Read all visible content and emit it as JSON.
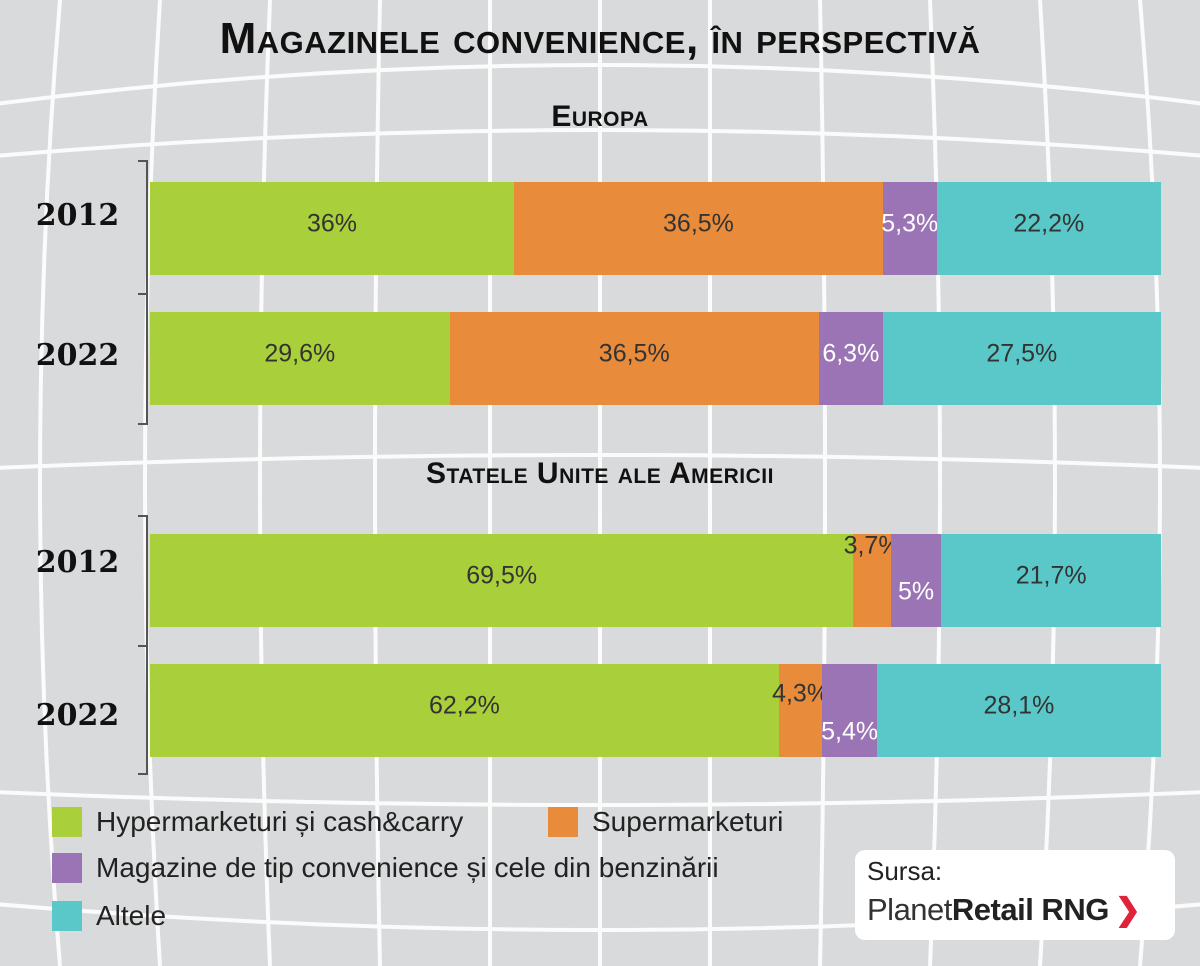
{
  "chart_data": [
    {
      "type": "bar",
      "orientation": "horizontal",
      "stacked": true,
      "title": "Europa",
      "categories": [
        "2012",
        "2022"
      ],
      "series": [
        {
          "name": "Hypermarketuri și cash&carry",
          "values": [
            36,
            29.6
          ],
          "labels": [
            "36%",
            "29,6%"
          ]
        },
        {
          "name": "Supermarketuri",
          "values": [
            36.5,
            36.5
          ],
          "labels": [
            "36,5%",
            "36,5%"
          ]
        },
        {
          "name": "Magazine de tip convenience și cele din benzinării",
          "values": [
            5.3,
            6.3
          ],
          "labels": [
            "5,3%",
            "6,3%"
          ]
        },
        {
          "name": "Altele",
          "values": [
            22.2,
            27.5
          ],
          "labels": [
            "22,2%",
            "27,5%"
          ]
        }
      ],
      "xlim": [
        0,
        100
      ],
      "grid": false
    },
    {
      "type": "bar",
      "orientation": "horizontal",
      "stacked": true,
      "title": "Statele Unite ale Americii",
      "categories": [
        "2012",
        "2022"
      ],
      "series": [
        {
          "name": "Hypermarketuri și cash&carry",
          "values": [
            69.5,
            62.2
          ],
          "labels": [
            "69,5%",
            "62,2%"
          ]
        },
        {
          "name": "Supermarketuri",
          "values": [
            3.7,
            4.3
          ],
          "labels": [
            "3,7%",
            "4,3%"
          ]
        },
        {
          "name": "Magazine de tip convenience și cele din benzinării",
          "values": [
            5,
            5.4
          ],
          "labels": [
            "5%",
            "5,4%"
          ]
        },
        {
          "name": "Altele",
          "values": [
            21.7,
            28.1
          ],
          "labels": [
            "21,7%",
            "28,1%"
          ]
        }
      ],
      "xlim": [
        0,
        100
      ],
      "grid": false
    }
  ],
  "title": "Magazinele convenience, în perspectivă",
  "colors": [
    "#a9cf3b",
    "#e88b3a",
    "#9b74b6",
    "#5ac7c8"
  ],
  "label_colors": [
    "#333333",
    "#333333",
    "#ffffff",
    "#333333"
  ],
  "legend": {
    "placement": "bottom-left",
    "items": [
      "Hypermarketuri și cash&carry",
      "Supermarketuri",
      "Magazine de tip convenience și cele din benzinării",
      "Altele"
    ]
  },
  "source": {
    "label": "Sursa:",
    "brand_light": "Planet",
    "brand_bold": "Retail RNG",
    "arrow": "❯"
  }
}
